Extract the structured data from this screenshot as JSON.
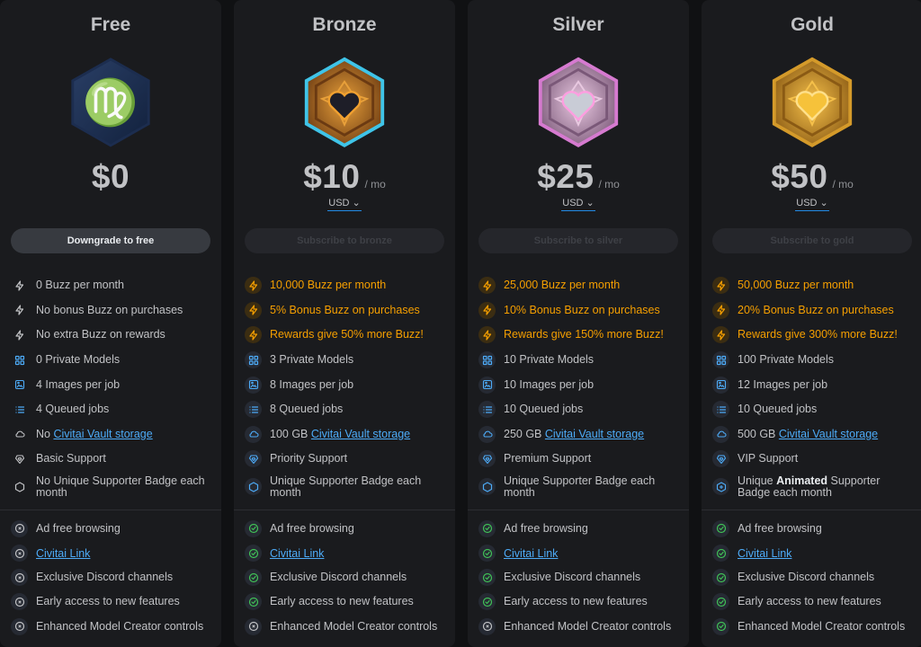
{
  "tiers": [
    {
      "name": "Free",
      "price": "$0",
      "per": "",
      "currency": "",
      "cta": "Downgrade to free",
      "cta_active": true,
      "features": [
        {
          "icon": "zap-icon",
          "text": "0 Buzz per month",
          "accent": false
        },
        {
          "icon": "zap-icon",
          "text": "No bonus Buzz on purchases",
          "accent": false
        },
        {
          "icon": "zap-icon",
          "text": "No extra Buzz on rewards",
          "accent": false
        },
        {
          "icon": "grid-icon",
          "text": "0 Private Models"
        },
        {
          "icon": "image-ai-icon",
          "text": "4 Images per job"
        },
        {
          "icon": "list-icon",
          "text": "4 Queued jobs"
        },
        {
          "icon": "cloud-icon",
          "prefix": "No ",
          "link": "Civitai Vault storage"
        },
        {
          "icon": "diamond-heart-icon",
          "text": "Basic Support"
        },
        {
          "icon": "hexagon-icon",
          "text": "No Unique Supporter Badge each month"
        }
      ],
      "perks": [
        {
          "text": "Ad free browsing",
          "on": false
        },
        {
          "link": "Civitai Link",
          "on": false
        },
        {
          "text": "Exclusive Discord channels",
          "on": false
        },
        {
          "text": "Early access to new features",
          "on": false
        },
        {
          "text": "Enhanced Model Creator controls",
          "on": false
        }
      ]
    },
    {
      "name": "Bronze",
      "price": "$10",
      "per": "/ mo",
      "currency": "USD",
      "cta": "Subscribe to bronze",
      "cta_active": false,
      "features": [
        {
          "icon": "zap-icon",
          "text": "10,000 Buzz per month",
          "accent": true
        },
        {
          "icon": "zap-icon",
          "text": "5% Bonus Buzz on purchases",
          "accent": true
        },
        {
          "icon": "zap-icon",
          "text": "Rewards give 50% more Buzz!",
          "accent": true
        },
        {
          "icon": "grid-icon",
          "text": "3 Private Models"
        },
        {
          "icon": "image-ai-icon",
          "text": "8 Images per job"
        },
        {
          "icon": "list-icon",
          "text": "8 Queued jobs"
        },
        {
          "icon": "cloud-icon",
          "prefix": "100 GB ",
          "link": "Civitai Vault storage"
        },
        {
          "icon": "diamond-heart-icon",
          "text": "Priority Support"
        },
        {
          "icon": "hexagon-icon",
          "text": "Unique Supporter Badge each month"
        }
      ],
      "perks": [
        {
          "text": "Ad free browsing",
          "on": true
        },
        {
          "link": "Civitai Link",
          "on": true
        },
        {
          "text": "Exclusive Discord channels",
          "on": true
        },
        {
          "text": "Early access to new features",
          "on": true
        },
        {
          "text": "Enhanced Model Creator controls",
          "on": false
        }
      ]
    },
    {
      "name": "Silver",
      "price": "$25",
      "per": "/ mo",
      "currency": "USD",
      "cta": "Subscribe to silver",
      "cta_active": false,
      "features": [
        {
          "icon": "zap-icon",
          "text": "25,000 Buzz per month",
          "accent": true
        },
        {
          "icon": "zap-icon",
          "text": "10% Bonus Buzz on purchases",
          "accent": true
        },
        {
          "icon": "zap-icon",
          "text": "Rewards give 150% more Buzz!",
          "accent": true
        },
        {
          "icon": "grid-icon",
          "text": "10 Private Models"
        },
        {
          "icon": "image-ai-icon",
          "text": "10 Images per job"
        },
        {
          "icon": "list-icon",
          "text": "10 Queued jobs"
        },
        {
          "icon": "cloud-icon",
          "prefix": "250 GB ",
          "link": "Civitai Vault storage"
        },
        {
          "icon": "diamond-heart-icon",
          "text": "Premium Support"
        },
        {
          "icon": "hexagon-icon",
          "text": "Unique Supporter Badge each month"
        }
      ],
      "perks": [
        {
          "text": "Ad free browsing",
          "on": true
        },
        {
          "link": "Civitai Link",
          "on": true
        },
        {
          "text": "Exclusive Discord channels",
          "on": true
        },
        {
          "text": "Early access to new features",
          "on": true
        },
        {
          "text": "Enhanced Model Creator controls",
          "on": false
        }
      ]
    },
    {
      "name": "Gold",
      "price": "$50",
      "per": "/ mo",
      "currency": "USD",
      "cta": "Subscribe to gold",
      "cta_active": false,
      "features": [
        {
          "icon": "zap-icon",
          "text": "50,000 Buzz per month",
          "accent": true
        },
        {
          "icon": "zap-icon",
          "text": "20% Bonus Buzz on purchases",
          "accent": true
        },
        {
          "icon": "zap-icon",
          "text": "Rewards give 300% more Buzz!",
          "accent": true
        },
        {
          "icon": "grid-icon",
          "text": "100 Private Models"
        },
        {
          "icon": "image-ai-icon",
          "text": "12 Images per job"
        },
        {
          "icon": "list-icon",
          "text": "10 Queued jobs"
        },
        {
          "icon": "cloud-icon",
          "prefix": "500 GB ",
          "link": "Civitai Vault storage"
        },
        {
          "icon": "diamond-heart-icon",
          "text": "VIP Support"
        },
        {
          "icon": "hexagon-plus-icon",
          "prefix": "Unique ",
          "bold": "Animated",
          "suffix": " Supporter Badge each month"
        }
      ],
      "perks": [
        {
          "text": "Ad free browsing",
          "on": true
        },
        {
          "link": "Civitai Link",
          "on": true
        },
        {
          "text": "Exclusive Discord channels",
          "on": true
        },
        {
          "text": "Early access to new features",
          "on": true
        },
        {
          "text": "Enhanced Model Creator controls",
          "on": true
        }
      ]
    }
  ],
  "colors": {
    "accent_gold": "#f59f00",
    "link_blue": "#4dabf7",
    "check_green": "#40c057",
    "blue_icon": "#4dabf7"
  }
}
